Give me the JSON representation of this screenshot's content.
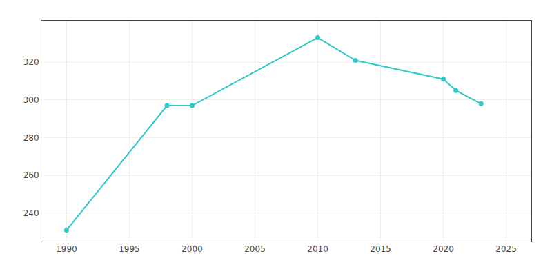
{
  "chart_data": {
    "type": "line",
    "x": [
      1990,
      1998,
      2000,
      2010,
      2013,
      2020,
      2021,
      2023
    ],
    "values": [
      231,
      297,
      297,
      333,
      321,
      311,
      305,
      298
    ],
    "color": "#2EC8C8",
    "marker": "circle",
    "line_style": "solid",
    "xlim": [
      1988,
      2027
    ],
    "ylim": [
      225,
      342
    ],
    "xticks": [
      1990,
      1995,
      2000,
      2005,
      2010,
      2015,
      2020,
      2025
    ],
    "yticks": [
      240,
      260,
      280,
      300,
      320
    ],
    "grid": true
  }
}
